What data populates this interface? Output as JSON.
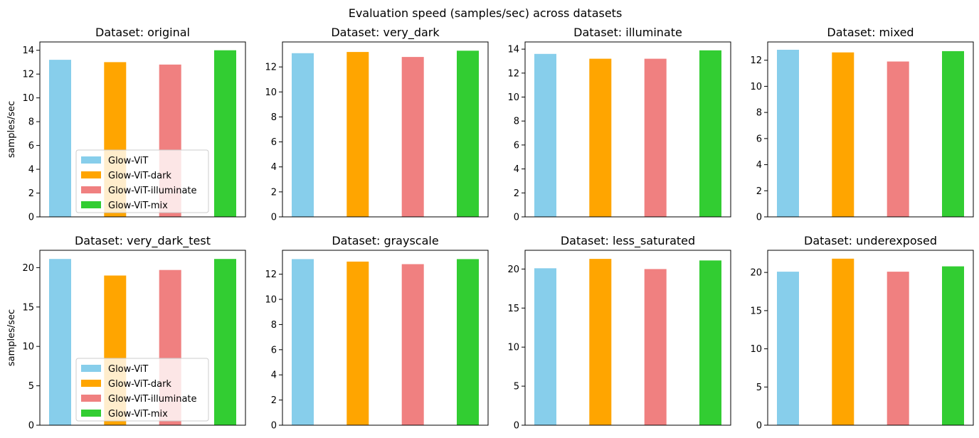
{
  "figure": {
    "suptitle": "Evaluation speed (samples/sec) across datasets"
  },
  "legend_labels": [
    "Glow-ViT",
    "Glow-ViT-dark",
    "Glow-ViT-illuminate",
    "Glow-ViT-mix"
  ],
  "colors": [
    "#87ceeb",
    "#ffa500",
    "#f08080",
    "#32cd32"
  ],
  "chart_data": [
    {
      "type": "bar",
      "title": "Dataset: original",
      "ylabel": "samples/sec",
      "categories": [
        "Glow-ViT",
        "Glow-ViT-dark",
        "Glow-ViT-illuminate",
        "Glow-ViT-mix"
      ],
      "values": [
        13.2,
        13.0,
        12.8,
        14.0
      ],
      "ylim": [
        0,
        14.7
      ],
      "yticks": [
        0,
        2,
        4,
        6,
        8,
        10,
        12,
        14
      ],
      "legend": "lower-left"
    },
    {
      "type": "bar",
      "title": "Dataset: very_dark",
      "ylabel": "",
      "categories": [
        "Glow-ViT",
        "Glow-ViT-dark",
        "Glow-ViT-illuminate",
        "Glow-ViT-mix"
      ],
      "values": [
        13.1,
        13.2,
        12.8,
        13.3
      ],
      "ylim": [
        0,
        14.0
      ],
      "yticks": [
        0,
        2,
        4,
        6,
        8,
        10,
        12
      ]
    },
    {
      "type": "bar",
      "title": "Dataset: illuminate",
      "ylabel": "",
      "categories": [
        "Glow-ViT",
        "Glow-ViT-dark",
        "Glow-ViT-illuminate",
        "Glow-ViT-mix"
      ],
      "values": [
        13.6,
        13.2,
        13.2,
        13.9
      ],
      "ylim": [
        0,
        14.6
      ],
      "yticks": [
        0,
        2,
        4,
        6,
        8,
        10,
        12,
        14
      ]
    },
    {
      "type": "bar",
      "title": "Dataset: mixed",
      "ylabel": "",
      "categories": [
        "Glow-ViT",
        "Glow-ViT-dark",
        "Glow-ViT-illuminate",
        "Glow-ViT-mix"
      ],
      "values": [
        12.8,
        12.6,
        11.9,
        12.7
      ],
      "ylim": [
        0,
        13.4
      ],
      "yticks": [
        0,
        2,
        4,
        6,
        8,
        10,
        12
      ]
    },
    {
      "type": "bar",
      "title": "Dataset: very_dark_test",
      "ylabel": "samples/sec",
      "categories": [
        "Glow-ViT",
        "Glow-ViT-dark",
        "Glow-ViT-illuminate",
        "Glow-ViT-mix"
      ],
      "values": [
        21.1,
        19.0,
        19.7,
        21.1
      ],
      "ylim": [
        0,
        22.2
      ],
      "yticks": [
        0,
        5,
        10,
        15,
        20
      ],
      "legend": "lower-left"
    },
    {
      "type": "bar",
      "title": "Dataset: grayscale",
      "ylabel": "",
      "categories": [
        "Glow-ViT",
        "Glow-ViT-dark",
        "Glow-ViT-illuminate",
        "Glow-ViT-mix"
      ],
      "values": [
        13.2,
        13.0,
        12.8,
        13.2
      ],
      "ylim": [
        0,
        13.9
      ],
      "yticks": [
        0,
        2,
        4,
        6,
        8,
        10,
        12
      ]
    },
    {
      "type": "bar",
      "title": "Dataset: less_saturated",
      "ylabel": "",
      "categories": [
        "Glow-ViT",
        "Glow-ViT-dark",
        "Glow-ViT-illuminate",
        "Glow-ViT-mix"
      ],
      "values": [
        20.1,
        21.3,
        20.0,
        21.1
      ],
      "ylim": [
        0,
        22.4
      ],
      "yticks": [
        0,
        5,
        10,
        15,
        20
      ]
    },
    {
      "type": "bar",
      "title": "Dataset: underexposed",
      "ylabel": "",
      "categories": [
        "Glow-ViT",
        "Glow-ViT-dark",
        "Glow-ViT-illuminate",
        "Glow-ViT-mix"
      ],
      "values": [
        20.1,
        21.8,
        20.1,
        20.8
      ],
      "ylim": [
        0,
        22.9
      ],
      "yticks": [
        0,
        5,
        10,
        15,
        20
      ]
    }
  ]
}
